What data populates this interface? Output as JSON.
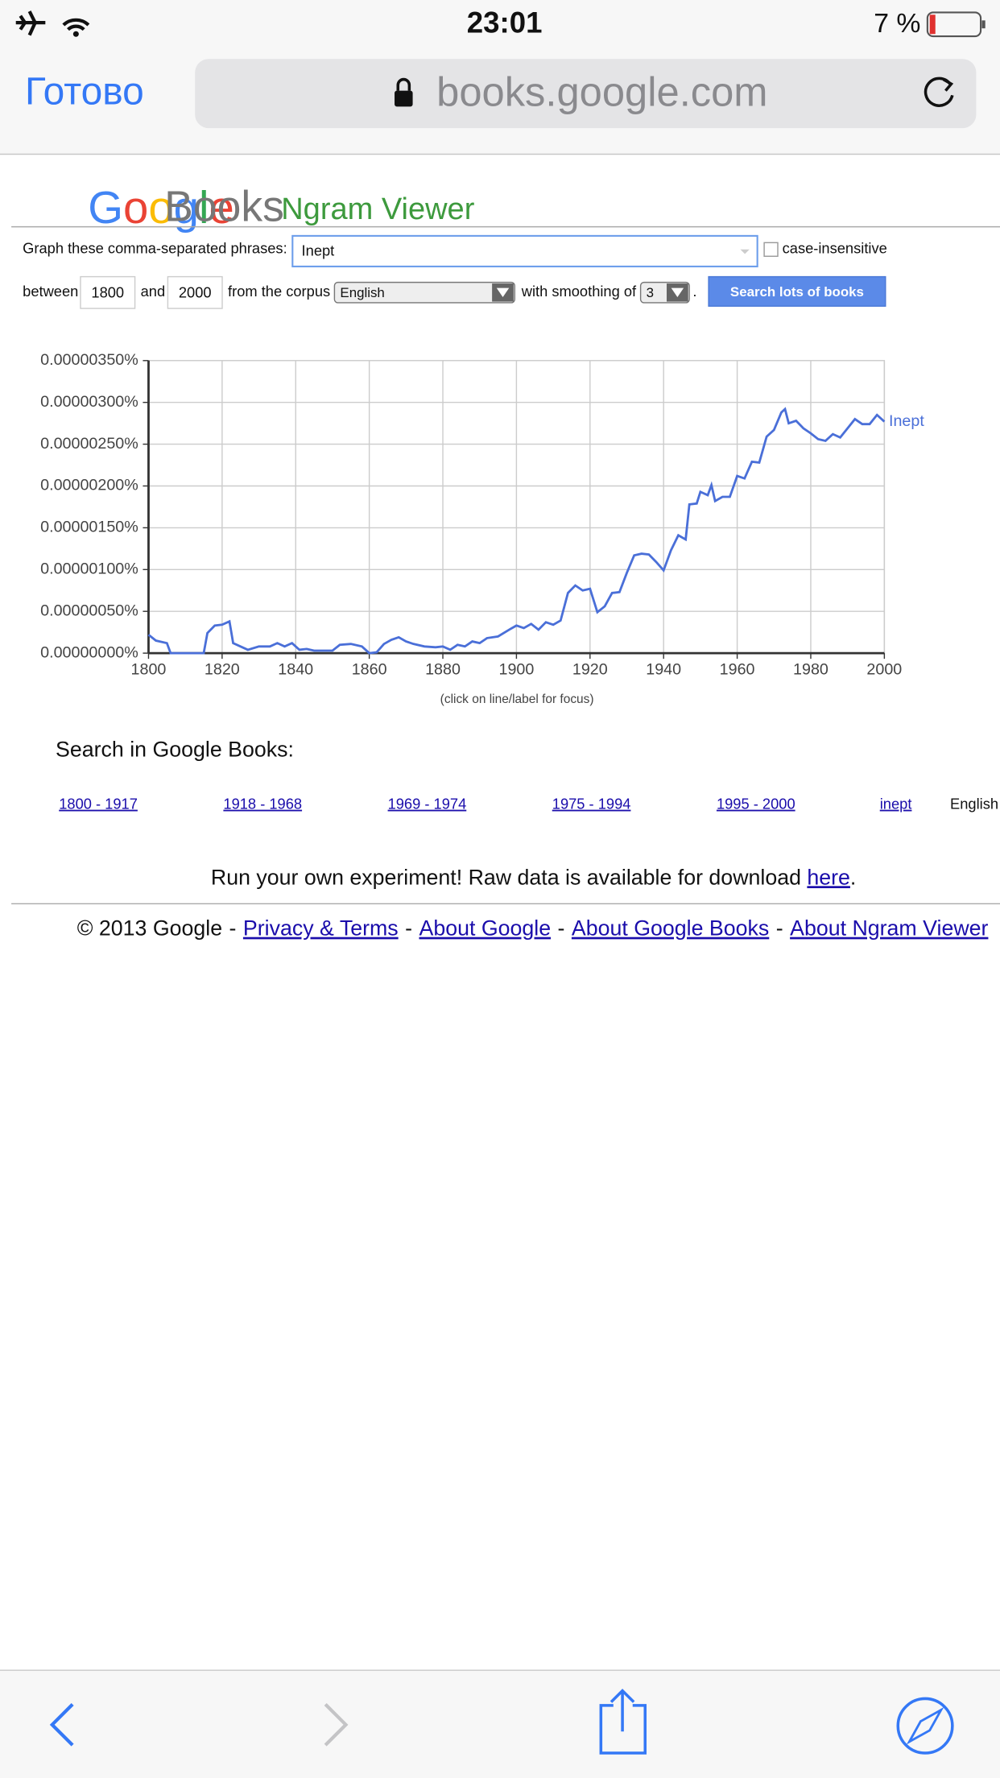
{
  "status_bar": {
    "time": "23:01",
    "battery": "7 %"
  },
  "browser": {
    "done": "Готово",
    "url": "books.google.com"
  },
  "header": {
    "logo_letters": [
      "G",
      "o",
      "o",
      "g",
      "l",
      "e"
    ],
    "books": "Books",
    "product": "Ngram Viewer"
  },
  "form": {
    "phrases_label": "Graph these comma-separated phrases:",
    "phrases": "Inept",
    "case_insensitive": "case-insensitive",
    "between": "between",
    "start_year": "1800",
    "and": "and",
    "end_year": "2000",
    "corpus_label": "from the corpus",
    "corpus": "English",
    "smoothing_label": "with smoothing of",
    "smoothing": "3",
    "period": ".",
    "button": "Search lots of books"
  },
  "chart_data": {
    "type": "line",
    "x": [
      1800,
      1802,
      1805,
      1806,
      1815,
      1816,
      1818,
      1820,
      1822,
      1823,
      1825,
      1827,
      1830,
      1833,
      1835,
      1837,
      1839,
      1841,
      1843,
      1845,
      1850,
      1852,
      1855,
      1858,
      1860,
      1862,
      1864,
      1866,
      1868,
      1870,
      1872,
      1875,
      1878,
      1880,
      1882,
      1884,
      1886,
      1888,
      1890,
      1892,
      1895,
      1898,
      1900,
      1902,
      1904,
      1906,
      1908,
      1910,
      1912,
      1914,
      1916,
      1918,
      1920,
      1922,
      1924,
      1926,
      1928,
      1930,
      1932,
      1934,
      1936,
      1938,
      1940,
      1942,
      1944,
      1946,
      1947,
      1949,
      1950,
      1952,
      1953,
      1954,
      1956,
      1958,
      1960,
      1962,
      1964,
      1966,
      1968,
      1970,
      1972,
      1973,
      1974,
      1976,
      1978,
      1980,
      1982,
      1984,
      1986,
      1988,
      1990,
      1992,
      1994,
      1996,
      1998,
      2000
    ],
    "series": [
      {
        "name": "Inept",
        "color": "#4a6fd8",
        "values": [
          2.2e-07,
          1.5e-07,
          1.2e-07,
          0,
          0,
          2.4e-07,
          3.3e-07,
          3.4e-07,
          3.8e-07,
          1.2e-07,
          8e-08,
          4e-08,
          8e-08,
          8e-08,
          1.2e-07,
          8e-08,
          1.2e-07,
          4e-08,
          5e-08,
          3e-08,
          3e-08,
          1e-07,
          1.1e-07,
          8e-08,
          0,
          1e-08,
          1.1e-07,
          1.6e-07,
          1.9e-07,
          1.4e-07,
          1.1e-07,
          8e-08,
          7e-08,
          8e-08,
          4e-08,
          1e-07,
          8e-08,
          1.4e-07,
          1.2e-07,
          1.8e-07,
          2e-07,
          2.8e-07,
          3.3e-07,
          3e-07,
          3.5e-07,
          2.8e-07,
          3.7e-07,
          3.4e-07,
          3.9e-07,
          7.2e-07,
          8.1e-07,
          7.5e-07,
          7.7e-07,
          4.9e-07,
          5.6e-07,
          7.2e-07,
          7.3e-07,
          9.6e-07,
          1.17e-06,
          1.19e-06,
          1.18e-06,
          1.09e-06,
          9.9e-07,
          1.23e-06,
          1.41e-06,
          1.36e-06,
          1.78e-06,
          1.79e-06,
          1.93e-06,
          1.89e-06,
          2.01e-06,
          1.82e-06,
          1.87e-06,
          1.87e-06,
          2.12e-06,
          2.09e-06,
          2.29e-06,
          2.28e-06,
          2.59e-06,
          2.67e-06,
          2.88e-06,
          2.92e-06,
          2.75e-06,
          2.78e-06,
          2.69e-06,
          2.63e-06,
          2.56e-06,
          2.54e-06,
          2.62e-06,
          2.58e-06,
          2.69e-06,
          2.8e-06,
          2.74e-06,
          2.74e-06,
          2.85e-06,
          2.77e-06
        ]
      }
    ],
    "xlim": [
      1800,
      2000
    ],
    "xticks": [
      1800,
      1820,
      1840,
      1860,
      1880,
      1900,
      1920,
      1940,
      1960,
      1980,
      2000
    ],
    "ylim": [
      0,
      3.5e-06
    ],
    "yticks": [
      {
        "value": 0,
        "label": "0.00000000%"
      },
      {
        "value": 5e-07,
        "label": "0.00000050%"
      },
      {
        "value": 1e-06,
        "label": "0.00000100%"
      },
      {
        "value": 1.5e-06,
        "label": "0.00000150%"
      },
      {
        "value": 2e-06,
        "label": "0.00000200%"
      },
      {
        "value": 2.5e-06,
        "label": "0.00000250%"
      },
      {
        "value": 3e-06,
        "label": "0.00000300%"
      },
      {
        "value": 3.5e-06,
        "label": "0.00000350%"
      }
    ],
    "grid": true,
    "caption": "(click on line/label for focus)"
  },
  "search": {
    "title": "Search in Google Books:",
    "links": [
      "1800 - 1917",
      "1918 - 1968",
      "1969 - 1974",
      "1975 - 1994",
      "1995 - 2000",
      "inept"
    ],
    "corpus": "English"
  },
  "experiment": {
    "text": "Run your own experiment! Raw data is available for download ",
    "link": "here",
    "end": "."
  },
  "footer": {
    "copyright": "© 2013 Google",
    "separator": "-",
    "links": [
      "Privacy & Terms",
      "About Google",
      "About Google Books",
      "About Ngram Viewer"
    ]
  }
}
